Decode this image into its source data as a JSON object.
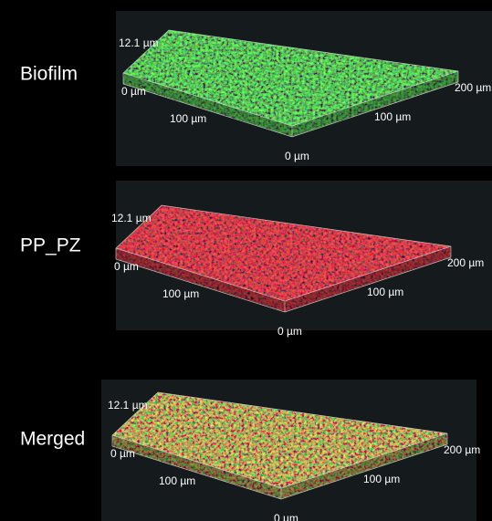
{
  "panels": [
    {
      "label": "Biofilm",
      "z_max": "12.1 µm",
      "z_min": "0 µm",
      "x_mid": "100 µm",
      "y_mid": "100 µm",
      "x_max": "200 µm",
      "origin": "0 µm"
    },
    {
      "label": "PP_PZ",
      "z_max": "12.1 µm",
      "z_min": "0 µm",
      "x_mid": "100 µm",
      "y_mid": "100 µm",
      "x_max": "200 µm",
      "origin": "0 µm"
    },
    {
      "label": "Merged",
      "z_max": "12.1 µm",
      "z_min": "0 µm",
      "x_mid": "100 µm",
      "y_mid": "100 µm",
      "x_max": "200 µm",
      "origin": "0 µm"
    }
  ]
}
